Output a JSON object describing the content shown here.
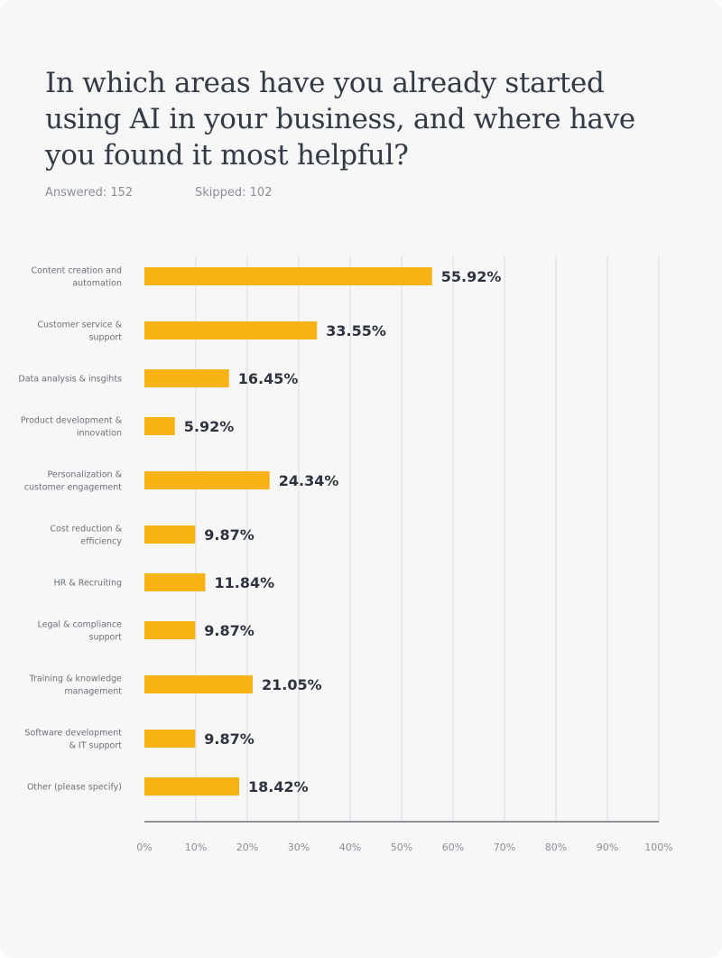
{
  "question": {
    "title": "In which areas have you already started using AI in your business, and where have you found it most helpful?",
    "answered": "Answered: 152",
    "skipped": "Skipped: 102"
  },
  "colors": {
    "bar": "#f9b214",
    "grid": "#dcdde0",
    "axis": "#6b707a"
  },
  "chart_data": {
    "type": "bar",
    "orientation": "horizontal",
    "title": "",
    "xlabel": "",
    "ylabel": "",
    "xlim": [
      0,
      100
    ],
    "grid": true,
    "categories": [
      [
        "Content creation and",
        "automation"
      ],
      [
        "Customer service &",
        "support"
      ],
      [
        "Data analysis & insgihts"
      ],
      [
        "Product development &",
        "innovation"
      ],
      [
        "Personalization &",
        "customer engagement"
      ],
      [
        "Cost reduction &",
        "efficiency"
      ],
      [
        "HR & Recruiting"
      ],
      [
        "Legal & compliance",
        "support"
      ],
      [
        "Training & knowledge",
        "management"
      ],
      [
        "Software development",
        "& IT support"
      ],
      [
        "Other (please specify)"
      ]
    ],
    "values": [
      55.92,
      33.55,
      16.45,
      5.92,
      24.34,
      9.87,
      11.84,
      9.87,
      21.05,
      9.87,
      18.42
    ],
    "value_labels": [
      "55.92%",
      "33.55%",
      "16.45%",
      "5.92%",
      "24.34%",
      "9.87%",
      "11.84%",
      "9.87%",
      "21.05%",
      "9.87%",
      "18.42%"
    ],
    "ticks": [
      0,
      10,
      20,
      30,
      40,
      50,
      60,
      70,
      80,
      90,
      100
    ],
    "tick_labels": [
      "0%",
      "10%",
      "20%",
      "30%",
      "40%",
      "50%",
      "60%",
      "70%",
      "80%",
      "90%",
      "100%"
    ]
  }
}
